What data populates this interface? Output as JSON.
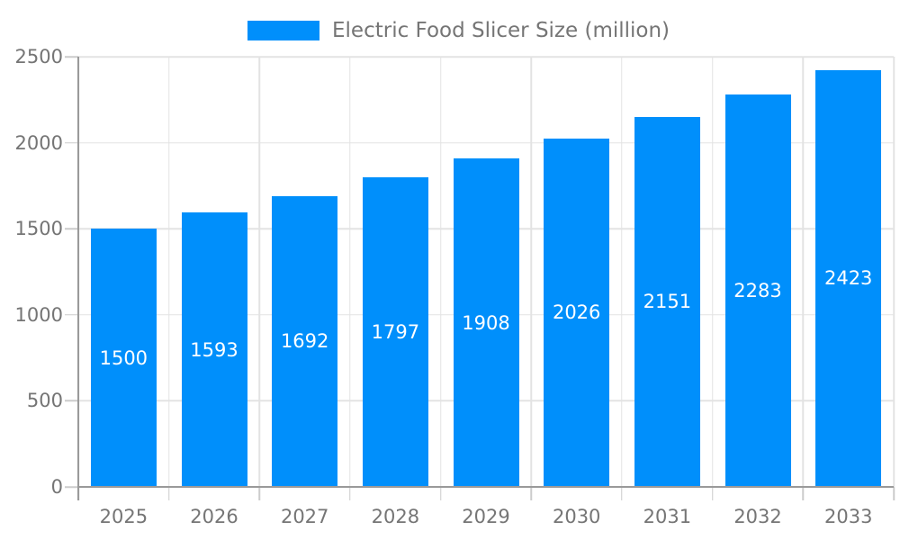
{
  "chart_data": {
    "type": "bar",
    "series_name": "Electric Food Slicer Size (million)",
    "categories": [
      "2025",
      "2026",
      "2027",
      "2028",
      "2029",
      "2030",
      "2031",
      "2032",
      "2033"
    ],
    "values": [
      1500,
      1593,
      1692,
      1797,
      1908,
      2026,
      2151,
      2283,
      2423
    ],
    "title": "",
    "xlabel": "",
    "ylabel": "",
    "ylim": [
      0,
      2500
    ],
    "y_ticks": [
      0,
      500,
      1000,
      1500,
      2000,
      2500
    ],
    "grid": true,
    "legend_position": "top-center",
    "colors": {
      "bar": "#008FFB",
      "bar_label_text": "#ffffff",
      "axis_text": "#757575",
      "gridline": "#e3e3e3",
      "axis_line": "#9a9a9a"
    }
  }
}
